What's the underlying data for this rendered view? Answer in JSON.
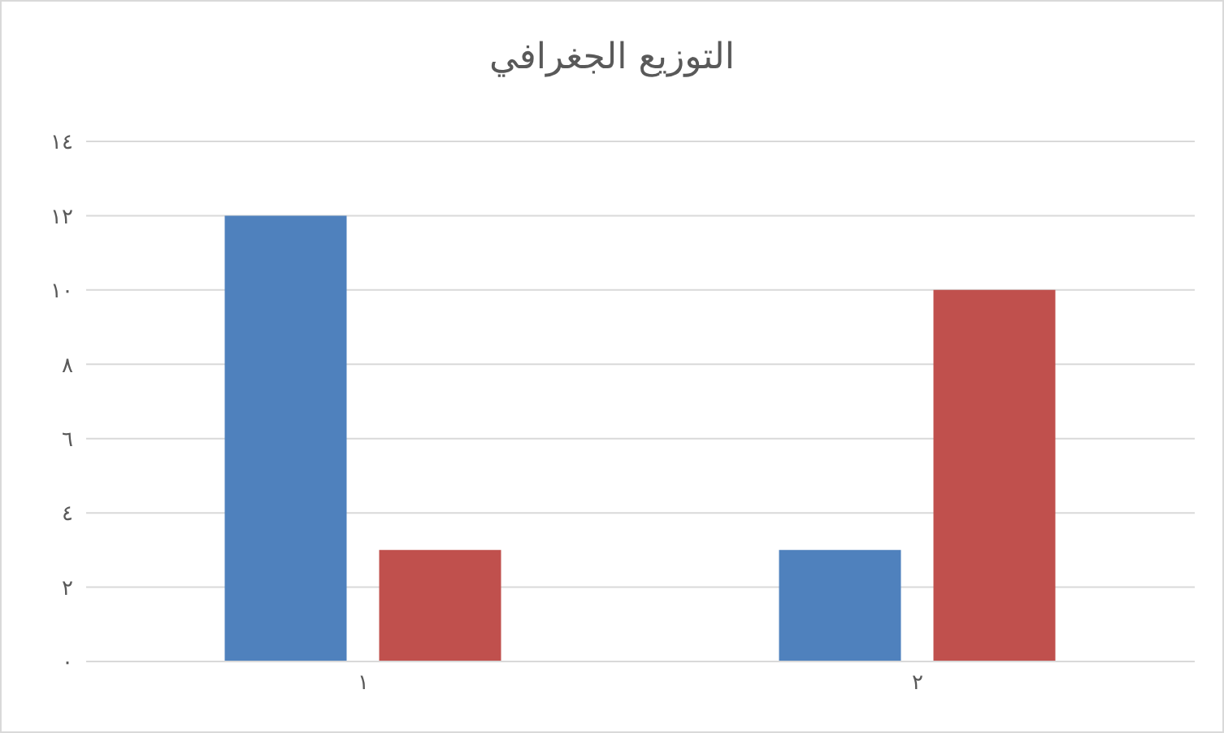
{
  "chart_data": {
    "type": "bar",
    "title": "التوزيع الجغرافي",
    "categories": [
      "١",
      "٢"
    ],
    "series": [
      {
        "color": "#4f81bd",
        "values": [
          12,
          3
        ]
      },
      {
        "color": "#c0504d",
        "values": [
          3,
          10
        ]
      }
    ],
    "ylim": [
      0,
      14
    ],
    "yticks": [
      {
        "value": 0,
        "label": "٠"
      },
      {
        "value": 2,
        "label": "٢"
      },
      {
        "value": 4,
        "label": "٤"
      },
      {
        "value": 6,
        "label": "٦"
      },
      {
        "value": 8,
        "label": "٨"
      },
      {
        "value": 10,
        "label": "١٠"
      },
      {
        "value": 12,
        "label": "١٢"
      },
      {
        "value": 14,
        "label": "١٤"
      }
    ],
    "grid": "y",
    "legend": false
  }
}
